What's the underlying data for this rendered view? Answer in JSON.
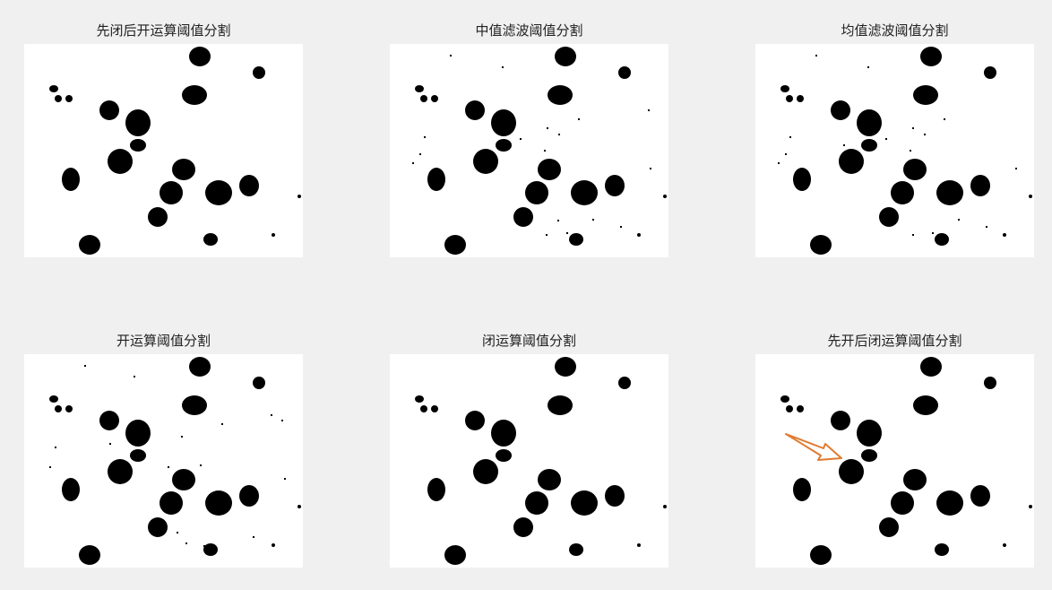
{
  "figure": {
    "panels": [
      {
        "id": "p1",
        "title": "先闭后开运算阈值分割"
      },
      {
        "id": "p2",
        "title": "中值滤波阈值分割"
      },
      {
        "id": "p3",
        "title": "均值滤波阈值分割"
      },
      {
        "id": "p4",
        "title": "开运算阈值分割"
      },
      {
        "id": "p5",
        "title": "闭运算阈值分割"
      },
      {
        "id": "p6",
        "title": "先开后闭运算阈值分割"
      }
    ],
    "annotation": {
      "type": "arrow",
      "color": "#e07b30",
      "panel": "p6"
    }
  }
}
